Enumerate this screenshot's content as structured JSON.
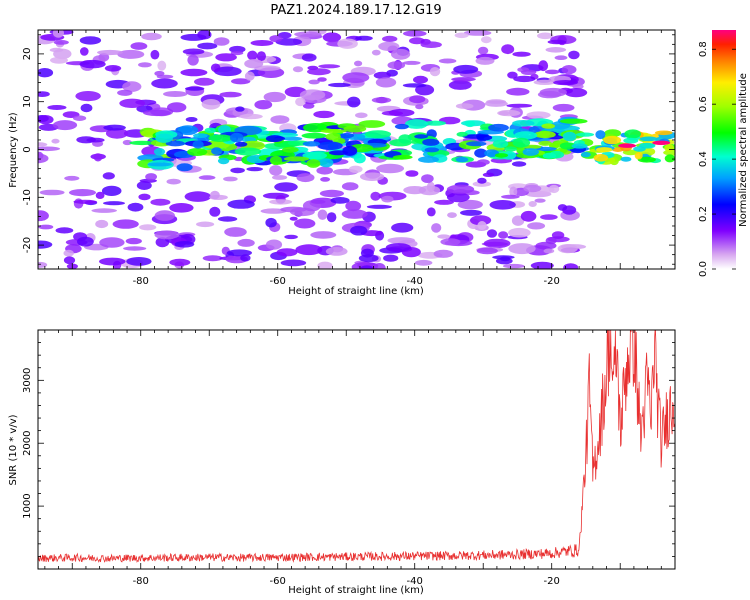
{
  "figure": {
    "title": "PAZ1.2024.189.17.12.G19"
  },
  "chart_data": [
    {
      "type": "heatmap",
      "title": "PAZ1.2024.189.17.12.G19",
      "xlabel": "Height of straight line (km)",
      "ylabel": "Frequency (Hz)",
      "xlim": [
        -95,
        -2
      ],
      "ylim": [
        -25,
        25
      ],
      "x_ticks": [
        -80,
        -60,
        -40,
        -20
      ],
      "y_ticks": [
        -20,
        -10,
        0,
        10,
        20
      ],
      "colorbar": {
        "label": "Normalized spectral amplitude",
        "range": [
          0,
          0.87
        ],
        "ticks": [
          0.0,
          0.2,
          0.4,
          0.6,
          0.8
        ]
      },
      "features": [
        {
          "x_range": [
            -95,
            -16
          ],
          "y_range": [
            -25,
            25
          ],
          "amplitude": 0.15
        },
        {
          "x_range": [
            -80,
            -16
          ],
          "y_range": [
            -3,
            5
          ],
          "amplitude": 0.45,
          "trend_hz_per_km": 0.04
        },
        {
          "x_range": [
            -16,
            -2
          ],
          "y_range": [
            -2,
            4
          ],
          "amplitude": 0.87
        }
      ]
    },
    {
      "type": "line",
      "xlabel": "Height of straight line (km)",
      "ylabel": "SNR (10 * v/v)",
      "xlim": [
        -95,
        -2
      ],
      "ylim": [
        0,
        3800
      ],
      "x_ticks": [
        -80,
        -60,
        -40,
        -20
      ],
      "y_ticks": [
        1000,
        2000,
        3000
      ],
      "series": [
        {
          "color": "#e83030",
          "x": [
            -95,
            -90,
            -85,
            -80,
            -75,
            -70,
            -65,
            -60,
            -55,
            -50,
            -45,
            -40,
            -35,
            -30,
            -25,
            -20,
            -18,
            -16,
            -15,
            -14.5,
            -14,
            -13,
            -12,
            -11.5,
            -11,
            -10.5,
            -10,
            -9,
            -8,
            -7,
            -6,
            -5.5,
            -5,
            -4.5,
            -4,
            -3,
            -2
          ],
          "y": [
            170,
            180,
            170,
            175,
            180,
            185,
            180,
            185,
            190,
            195,
            200,
            205,
            210,
            220,
            230,
            250,
            280,
            300,
            1800,
            2900,
            1500,
            2200,
            3100,
            3800,
            2800,
            3500,
            2200,
            3300,
            3700,
            2100,
            3000,
            2300,
            3600,
            2600,
            2000,
            2500,
            2700
          ]
        }
      ]
    }
  ]
}
